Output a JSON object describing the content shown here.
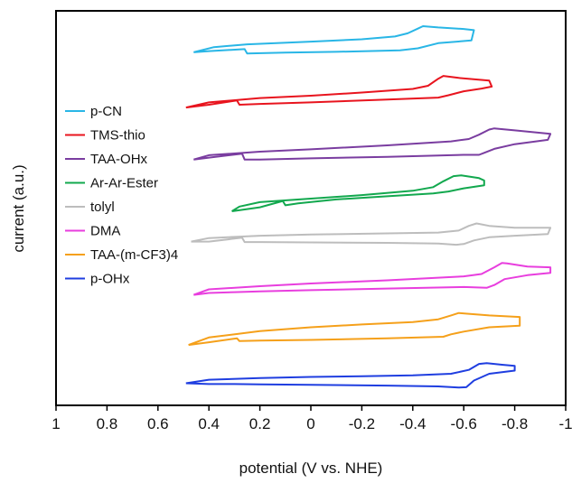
{
  "chart_data": {
    "type": "line",
    "title": "",
    "xlabel": "potential (V vs. NHE)",
    "ylabel": "current (a.u.)",
    "xlim": [
      1,
      -1
    ],
    "x_ticks": [
      1,
      0.8,
      0.6,
      0.4,
      0.2,
      0,
      -0.2,
      -0.4,
      -0.6,
      -0.8,
      -1
    ],
    "x_tick_labels": [
      "1",
      "0.8",
      "0.6",
      "0.4",
      "0.2",
      "0",
      "-0.2",
      "-0.4",
      "-0.6",
      "-0.8",
      "-1"
    ],
    "ylim": [
      0,
      100
    ],
    "y_ticks_shown": false,
    "grid": false,
    "legend": "left",
    "series": [
      {
        "name": "p-CN",
        "color": "#29b6e6",
        "x": [
          0.46,
          0.38,
          0.25,
          0.0,
          -0.2,
          -0.33,
          -0.38,
          -0.42,
          -0.44,
          -0.5,
          -0.6,
          -0.64,
          -0.63,
          -0.5,
          -0.42,
          -0.35,
          -0.1,
          0.1,
          0.25,
          0.26,
          0.4,
          0.46
        ],
        "y": [
          89.5,
          90.8,
          91.5,
          92.2,
          92.8,
          93.5,
          94.3,
          95.5,
          96.1,
          95.8,
          95.4,
          95.1,
          92.5,
          91.8,
          90.5,
          90.0,
          89.6,
          89.4,
          89.2,
          90.3,
          89.8,
          89.5
        ]
      },
      {
        "name": "TMS-thio",
        "color": "#e8141e",
        "x": [
          0.49,
          0.4,
          0.2,
          0.0,
          -0.2,
          -0.4,
          -0.46,
          -0.5,
          -0.52,
          -0.58,
          -0.7,
          -0.71,
          -0.67,
          -0.6,
          -0.54,
          -0.5,
          -0.3,
          0.0,
          0.2,
          0.28,
          0.29,
          0.4,
          0.49
        ],
        "y": [
          75.5,
          76.8,
          77.9,
          78.5,
          79.3,
          80.2,
          81.0,
          82.8,
          83.5,
          83.0,
          82.3,
          80.8,
          80.3,
          79.6,
          78.6,
          78.0,
          77.5,
          76.8,
          76.4,
          76.2,
          77.3,
          76.2,
          75.5
        ]
      },
      {
        "name": "TAA-OHx",
        "color": "#7a3da0",
        "x": [
          0.46,
          0.4,
          0.2,
          0.0,
          -0.3,
          -0.55,
          -0.62,
          -0.66,
          -0.7,
          -0.72,
          -0.8,
          -0.94,
          -0.93,
          -0.8,
          -0.72,
          -0.68,
          -0.66,
          -0.6,
          -0.3,
          0.0,
          0.2,
          0.26,
          0.27,
          0.4,
          0.46
        ],
        "y": [
          62.3,
          63.4,
          64.3,
          64.9,
          65.9,
          66.9,
          67.5,
          68.6,
          69.9,
          70.2,
          69.7,
          68.8,
          67.3,
          66.2,
          65.0,
          64.0,
          63.5,
          63.5,
          63.0,
          62.6,
          62.3,
          62.3,
          63.8,
          62.8,
          62.3
        ]
      },
      {
        "name": "Ar-Ar-Ester",
        "color": "#12a84e",
        "x": [
          0.31,
          0.28,
          0.2,
          0.0,
          -0.2,
          -0.4,
          -0.48,
          -0.52,
          -0.56,
          -0.59,
          -0.66,
          -0.68,
          -0.68,
          -0.6,
          -0.54,
          -0.48,
          -0.3,
          -0.1,
          0.05,
          0.1,
          0.11,
          0.2,
          0.31
        ],
        "y": [
          49.2,
          50.4,
          51.5,
          52.4,
          53.3,
          54.4,
          55.3,
          56.8,
          58.1,
          58.3,
          57.6,
          57.0,
          55.8,
          55.0,
          54.2,
          53.7,
          53.0,
          52.2,
          51.2,
          50.7,
          51.8,
          50.2,
          49.2
        ]
      },
      {
        "name": "tolyl",
        "color": "#bdbdbd",
        "x": [
          0.47,
          0.4,
          0.2,
          0.0,
          -0.3,
          -0.5,
          -0.58,
          -0.62,
          -0.65,
          -0.66,
          -0.7,
          -0.8,
          -0.94,
          -0.93,
          -0.8,
          -0.7,
          -0.64,
          -0.6,
          -0.57,
          -0.5,
          -0.3,
          0.0,
          0.2,
          0.26,
          0.27,
          0.4,
          0.47
        ],
        "y": [
          41.5,
          42.4,
          43.0,
          43.3,
          43.6,
          43.8,
          44.3,
          45.5,
          46.1,
          46.0,
          45.5,
          45.0,
          45.0,
          43.4,
          43.0,
          42.6,
          41.8,
          40.9,
          40.7,
          41.0,
          41.2,
          41.3,
          41.4,
          41.4,
          42.5,
          41.5,
          41.5
        ]
      },
      {
        "name": "DMA",
        "color": "#e83ede",
        "x": [
          0.46,
          0.4,
          0.2,
          0.0,
          -0.3,
          -0.6,
          -0.67,
          -0.72,
          -0.75,
          -0.77,
          -0.85,
          -0.94,
          -0.94,
          -0.85,
          -0.76,
          -0.72,
          -0.69,
          -0.6,
          -0.3,
          0.0,
          0.2,
          0.3,
          0.4,
          0.46
        ],
        "y": [
          28.0,
          29.4,
          30.2,
          30.9,
          31.7,
          32.7,
          33.3,
          35.0,
          36.1,
          36.0,
          35.2,
          35.0,
          33.6,
          33.0,
          32.0,
          30.5,
          29.8,
          30.0,
          29.6,
          29.2,
          28.9,
          28.7,
          28.5,
          28.0
        ]
      },
      {
        "name": "TAA-(m-CF3)4",
        "color": "#f5a01a",
        "x": [
          0.48,
          0.4,
          0.2,
          0.0,
          -0.2,
          -0.4,
          -0.5,
          -0.55,
          -0.58,
          -0.62,
          -0.7,
          -0.82,
          -0.82,
          -0.7,
          -0.6,
          -0.55,
          -0.52,
          -0.3,
          0.0,
          0.2,
          0.28,
          0.29,
          0.4,
          0.48
        ],
        "y": [
          15.3,
          17.2,
          18.8,
          19.8,
          20.5,
          21.1,
          21.8,
          22.8,
          23.4,
          23.2,
          22.8,
          22.4,
          20.2,
          19.8,
          18.7,
          18.0,
          17.4,
          17.0,
          16.6,
          16.4,
          16.3,
          17.0,
          16.0,
          15.3
        ]
      },
      {
        "name": "p-OHx",
        "color": "#1f3ee0",
        "x": [
          0.49,
          0.4,
          0.2,
          0.0,
          -0.2,
          -0.4,
          -0.55,
          -0.62,
          -0.66,
          -0.69,
          -0.75,
          -0.8,
          -0.8,
          -0.7,
          -0.64,
          -0.61,
          -0.58,
          -0.5,
          -0.3,
          0.0,
          0.2,
          0.3,
          0.4,
          0.49
        ],
        "y": [
          5.6,
          6.5,
          6.9,
          7.2,
          7.4,
          7.6,
          8.0,
          9.0,
          10.5,
          10.7,
          10.3,
          10.0,
          8.8,
          8.0,
          6.3,
          4.6,
          4.5,
          4.8,
          5.0,
          5.2,
          5.3,
          5.4,
          5.4,
          5.6
        ]
      }
    ]
  }
}
